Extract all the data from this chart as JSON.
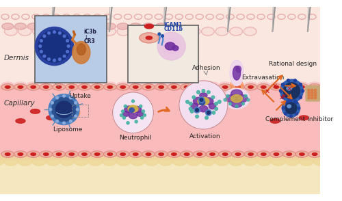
{
  "figsize": [
    5.0,
    2.94
  ],
  "dpi": 100,
  "dermis_color": "#FAE8E0",
  "capillary_color": "#F9CCCC",
  "capillary_lumen_color": "#F9BBBB",
  "bottom_color": "#F5E8C0",
  "labels": {
    "dermis": "Dermis",
    "capillary": "Capillary",
    "uptake": "Uptake",
    "liposome": "Liposome",
    "neutrophil": "Neutrophil",
    "activation": "Activation",
    "adhesion": "Adhesion",
    "extravasation": "Extravasation",
    "rational_design": "Rational design",
    "complement_inhibitor": "Complement inhibitor",
    "ic3b": "iC3b",
    "cr3": "CR3",
    "icam1": "ICAM1",
    "cd11b": "CD11b"
  },
  "colors": {
    "liposome_outer": "#4A7EC0",
    "liposome_mid": "#2A5090",
    "liposome_inner": "#1A3070",
    "liposome_pattern": "#6090D0",
    "neutrophil_bg": "#E8C0E0",
    "neutrophil_pink": "#CC88BB",
    "nucleus_purple": "#7030A0",
    "nucleus_dark": "#4A1A60",
    "nucleus_yellow": "#D4B840",
    "granule_blue": "#6080CC",
    "granule_teal": "#40B0A0",
    "red_cell_dark": "#CC2020",
    "red_cell_light": "#E06060",
    "wall_cell": "#EEB0A0",
    "wall_border": "#DD8880",
    "orange_arrow": "#E06820",
    "red_x": "#CC1010",
    "inset1_bg": "#B8CCE8",
    "inset1_dark": "#6080B0",
    "inset2_bg": "#F0EAE0",
    "hair_color": "#909090",
    "skin_dots": "#E8AAAA",
    "skin_dots2": "#DDA0A0",
    "complement_blue": "#3060B0",
    "complement_dark": "#1A3060",
    "particulate_tan": "#C8A878",
    "particulate_orange": "#E07840"
  }
}
